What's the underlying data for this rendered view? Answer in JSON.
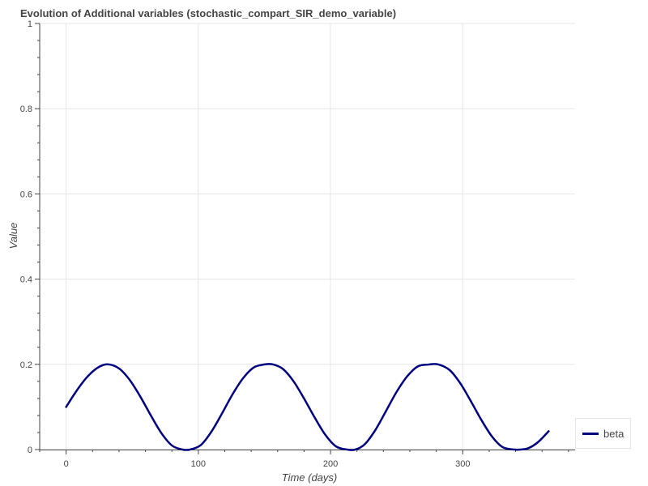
{
  "chart_data": {
    "type": "line",
    "title": "Evolution of Additional variables (stochastic_compart_SIR_demo_variable)",
    "xlabel": "Time (days)",
    "ylabel": "Value",
    "xlim": [
      -20,
      385
    ],
    "ylim": [
      0,
      1
    ],
    "x_ticks": [
      0,
      100,
      200,
      300
    ],
    "y_ticks": [
      0,
      0.2,
      0.4,
      0.6,
      0.8,
      1
    ],
    "x_tick_labels": [
      "0",
      "100",
      "200",
      "300"
    ],
    "y_tick_labels": [
      "0",
      "0.2",
      "0.4",
      "0.6",
      "0.8",
      "1"
    ],
    "grid": true,
    "legend_position": "bottom-right-outside",
    "series": [
      {
        "name": "beta",
        "color": "#000080",
        "x": [
          0,
          8,
          16,
          24,
          31.25,
          40,
          48,
          56,
          64,
          72,
          80,
          88,
          93.75,
          102,
          110,
          118,
          126,
          134,
          142,
          150,
          156.25,
          164,
          172,
          180,
          188,
          196,
          204,
          212,
          218.75,
          226,
          234,
          242,
          250,
          258,
          266,
          274,
          281.25,
          290,
          298,
          306,
          314,
          322,
          330,
          338,
          343.75,
          350,
          357,
          365
        ],
        "values": [
          0.1,
          0.1383,
          0.1707,
          0.1924,
          0.2,
          0.1904,
          0.1637,
          0.1249,
          0.0805,
          0.0388,
          0.0096,
          0.0,
          0.0,
          0.0108,
          0.0424,
          0.0852,
          0.1303,
          0.168,
          0.1928,
          0.1998,
          0.2,
          0.1891,
          0.1603,
          0.1196,
          0.0753,
          0.0349,
          0.0077,
          0.0002,
          0.0,
          0.0129,
          0.0463,
          0.0906,
          0.1354,
          0.1719,
          0.1951,
          0.1995,
          0.2,
          0.1868,
          0.1562,
          0.1143,
          0.07,
          0.0312,
          0.006,
          0.0003,
          0.0,
          0.0037,
          0.0176,
          0.043
        ]
      }
    ]
  }
}
